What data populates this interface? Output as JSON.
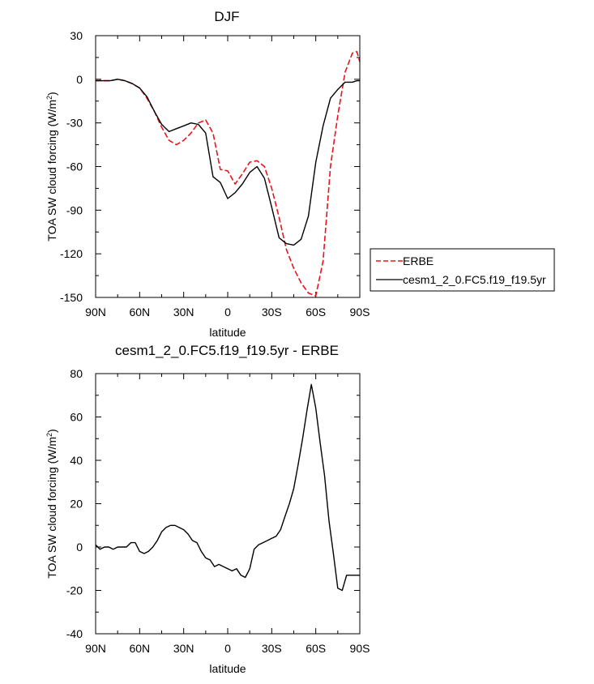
{
  "chart_data": [
    {
      "type": "line",
      "title": "DJF",
      "xlabel": "latitude",
      "ylabel_main": "TOA SW cloud forcing (W/m",
      "ylabel_sup": "2",
      "ylabel_close": ")",
      "xlim": [
        90,
        -90
      ],
      "ylim": [
        -150,
        30
      ],
      "xticks": [
        90,
        60,
        30,
        0,
        -30,
        -60,
        -90
      ],
      "xtick_labels": [
        "90N",
        "60N",
        "30N",
        "0",
        "30S",
        "60S",
        "90S"
      ],
      "yticks": [
        30,
        0,
        -30,
        -60,
        -90,
        -120,
        -150
      ],
      "ytick_labels": [
        "30",
        "0",
        "-30",
        "-60",
        "-90",
        "-120",
        "-150"
      ],
      "legend_position": "right",
      "series": [
        {
          "name": "ERBE",
          "color": "#e8141c",
          "style": "dashed",
          "x": [
            90,
            85,
            80,
            75,
            70,
            65,
            60,
            55,
            50,
            45,
            40,
            35,
            30,
            25,
            20,
            15,
            10,
            5,
            0,
            -5,
            -10,
            -15,
            -20,
            -25,
            -30,
            -35,
            -40,
            -45,
            -50,
            -55,
            -60,
            -65,
            -70,
            -75,
            -80,
            -85,
            -88,
            -90
          ],
          "y": [
            -1,
            -1,
            -1,
            0,
            -1,
            -3,
            -6,
            -13,
            -22,
            -33,
            -42,
            -45,
            -42,
            -37,
            -30,
            -28,
            -37,
            -62,
            -63,
            -72,
            -65,
            -57,
            -56,
            -60,
            -75,
            -95,
            -117,
            -130,
            -140,
            -147,
            -149,
            -125,
            -60,
            -25,
            5,
            18,
            19,
            12
          ]
        },
        {
          "name": "cesm1_2_0.FC5.f19_f19.5yr",
          "color": "#000000",
          "style": "solid",
          "x": [
            90,
            85,
            80,
            75,
            70,
            65,
            60,
            55,
            50,
            45,
            40,
            35,
            30,
            25,
            20,
            15,
            10,
            5,
            0,
            -5,
            -10,
            -15,
            -20,
            -25,
            -30,
            -35,
            -40,
            -45,
            -50,
            -55,
            -60,
            -65,
            -70,
            -75,
            -80,
            -85,
            -88,
            -90
          ],
          "y": [
            -1,
            -1,
            -1,
            0,
            -1,
            -3,
            -6,
            -12,
            -22,
            -31,
            -36,
            -34,
            -32,
            -30,
            -31,
            -37,
            -67,
            -71,
            -82,
            -78,
            -72,
            -64,
            -60,
            -68,
            -88,
            -109,
            -113,
            -114,
            -110,
            -94,
            -57,
            -32,
            -13,
            -7,
            -2,
            -2,
            -1,
            -1
          ]
        }
      ]
    },
    {
      "type": "line",
      "title": "cesm1_2_0.FC5.f19_f19.5yr - ERBE",
      "xlabel": "latitude",
      "ylabel_main": "TOA SW cloud forcing (W/m",
      "ylabel_sup": "2",
      "ylabel_close": ")",
      "xlim": [
        90,
        -90
      ],
      "ylim": [
        -40,
        80
      ],
      "xticks": [
        90,
        60,
        30,
        0,
        -30,
        -60,
        -90
      ],
      "xtick_labels": [
        "90N",
        "60N",
        "30N",
        "0",
        "30S",
        "60S",
        "90S"
      ],
      "yticks": [
        80,
        60,
        40,
        20,
        0,
        -20,
        -40
      ],
      "ytick_labels": [
        "80",
        "60",
        "40",
        "20",
        "0",
        "-20",
        "-40"
      ],
      "series": [
        {
          "color": "#000000",
          "style": "solid",
          "x": [
            90,
            87,
            84,
            81,
            78,
            75,
            72,
            69,
            66,
            63,
            60,
            57,
            54,
            51,
            48,
            45,
            42,
            39,
            36,
            33,
            30,
            27,
            24,
            21,
            18,
            15,
            12,
            9,
            6,
            3,
            0,
            -3,
            -6,
            -9,
            -12,
            -15,
            -18,
            -21,
            -24,
            -27,
            -30,
            -33,
            -36,
            -39,
            -42,
            -45,
            -48,
            -51,
            -54,
            -57,
            -60,
            -63,
            -66,
            -69,
            -72,
            -75,
            -78,
            -81,
            -84,
            -87,
            -90
          ],
          "y": [
            1,
            -1,
            0,
            0,
            -1,
            0,
            0,
            0,
            2,
            2,
            -2,
            -3,
            -2,
            0,
            3,
            7,
            9,
            10,
            10,
            9,
            8,
            6,
            3,
            2,
            -2,
            -5,
            -6,
            -9,
            -8,
            -9,
            -10,
            -11,
            -10,
            -13,
            -14,
            -10,
            -1,
            1,
            2,
            3,
            4,
            5,
            8,
            14,
            20,
            27,
            38,
            50,
            63,
            75,
            64,
            48,
            33,
            12,
            -3,
            -19,
            -20,
            -13,
            -13,
            -13,
            -13
          ]
        }
      ]
    }
  ]
}
